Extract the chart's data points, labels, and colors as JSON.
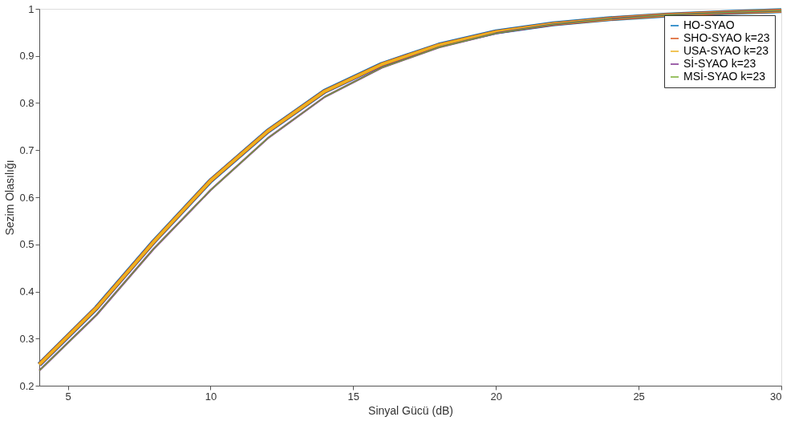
{
  "chart_data": {
    "type": "line",
    "xlabel": "Sinyal Gücü (dB)",
    "ylabel": "Sezim Olasılığı",
    "x": [
      4,
      6,
      8,
      10,
      12,
      14,
      16,
      18,
      20,
      22,
      24,
      26,
      28,
      30
    ],
    "xlim": [
      4,
      30
    ],
    "xticks": [
      5,
      10,
      15,
      20,
      25,
      30
    ],
    "ylim": [
      0.2,
      1
    ],
    "yticks": [
      0.2,
      0.3,
      0.4,
      0.5,
      0.6,
      0.7,
      0.8,
      0.9,
      {
        "value": 1,
        "label": "1"
      }
    ],
    "grid": false,
    "legend": "top right",
    "marker": "none",
    "line_style": "solid",
    "series": [
      {
        "name": "HO-SYAO",
        "color": "#0072bd",
        "values": [
          0.245,
          0.365,
          0.505,
          0.635,
          0.74,
          0.825,
          0.882,
          0.923,
          0.951,
          0.968,
          0.979,
          0.987,
          0.992,
          0.996
        ]
      },
      {
        "name": "SHO-SYAO k=23",
        "color": "#d95319",
        "values": [
          0.245,
          0.365,
          0.505,
          0.635,
          0.74,
          0.825,
          0.882,
          0.923,
          0.951,
          0.968,
          0.979,
          0.987,
          0.992,
          0.996
        ]
      },
      {
        "name": "USA-SYAO k=23",
        "color": "#edb120",
        "values": [
          0.245,
          0.365,
          0.505,
          0.635,
          0.74,
          0.825,
          0.882,
          0.923,
          0.951,
          0.968,
          0.979,
          0.987,
          0.992,
          0.996
        ]
      },
      {
        "name": "Sİ-SYAO k=23",
        "color": "#7e2f8e",
        "values": [
          0.232,
          0.35,
          0.49,
          0.615,
          0.725,
          0.813,
          0.875,
          0.918,
          0.948,
          0.967,
          0.979,
          0.987,
          0.992,
          0.996
        ]
      },
      {
        "name": "MSİ-SYAO k=23",
        "color": "#77ac30",
        "values": [
          0.232,
          0.35,
          0.49,
          0.615,
          0.725,
          0.813,
          0.875,
          0.918,
          0.948,
          0.967,
          0.979,
          0.987,
          0.992,
          0.996
        ]
      }
    ]
  }
}
